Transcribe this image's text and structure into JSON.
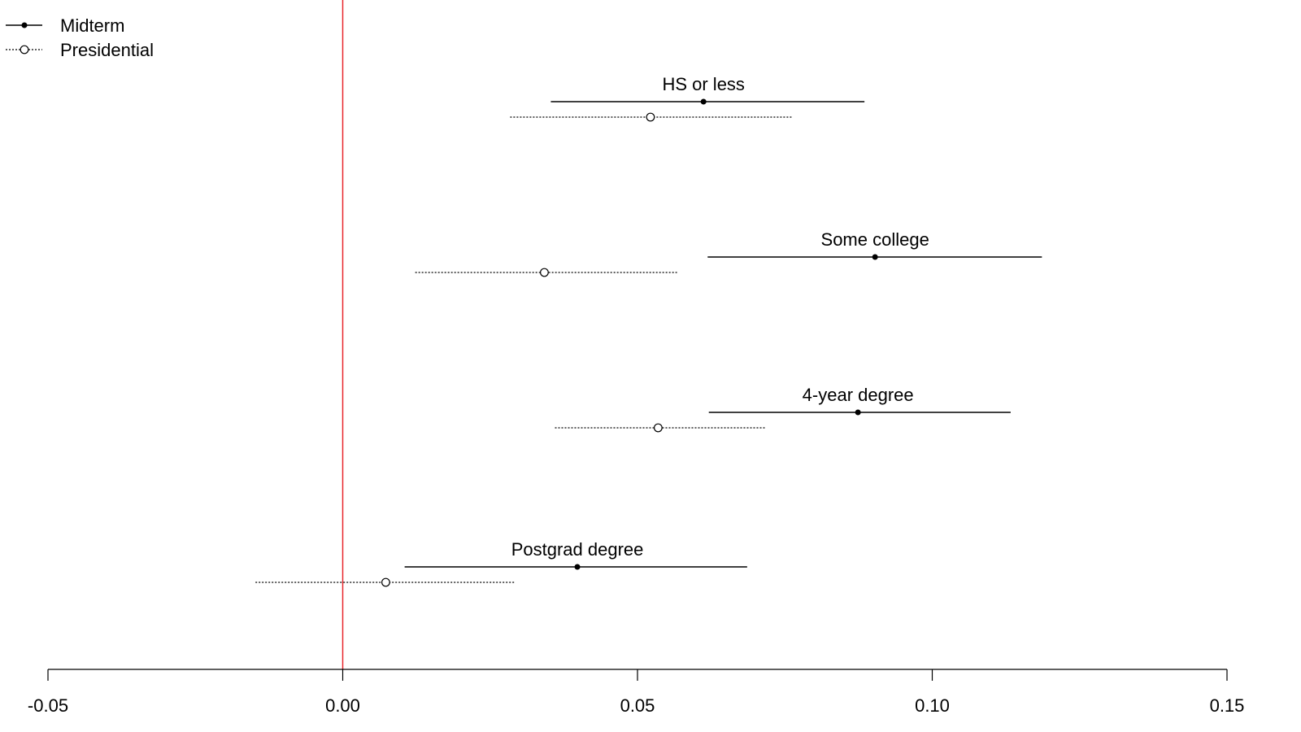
{
  "chart_data": {
    "type": "scatter",
    "subtype": "coefficient-plot",
    "title": "",
    "xlabel": "",
    "ylabel": "",
    "xlim": [
      -0.05,
      0.15
    ],
    "x_ticks": [
      -0.05,
      0.0,
      0.05,
      0.1,
      0.15
    ],
    "x_tick_labels": [
      "-0.05",
      "0.00",
      "0.05",
      "0.10",
      "0.15"
    ],
    "reference_line": {
      "x": 0.0,
      "color": "#e8262b"
    },
    "grid": false,
    "legend_position": "top-left",
    "categories": [
      "HS or less",
      "Some college",
      "4-year degree",
      "Postgrad degree"
    ],
    "series": [
      {
        "name": "Midterm",
        "line_style": "solid",
        "marker": "filled-circle",
        "points": [
          {
            "category": "HS or less",
            "estimate": 0.0612,
            "lower": 0.0353,
            "upper": 0.0885
          },
          {
            "category": "Some college",
            "estimate": 0.0903,
            "lower": 0.0619,
            "upper": 0.1186
          },
          {
            "category": "4-year degree",
            "estimate": 0.0874,
            "lower": 0.0621,
            "upper": 0.1133
          },
          {
            "category": "Postgrad degree",
            "estimate": 0.0398,
            "lower": 0.0105,
            "upper": 0.0686
          }
        ]
      },
      {
        "name": "Presidential",
        "line_style": "dotted",
        "marker": "open-circle",
        "points": [
          {
            "category": "HS or less",
            "estimate": 0.0522,
            "lower": 0.0284,
            "upper": 0.0763
          },
          {
            "category": "Some college",
            "estimate": 0.0342,
            "lower": 0.0123,
            "upper": 0.0567
          },
          {
            "category": "4-year degree",
            "estimate": 0.0535,
            "lower": 0.036,
            "upper": 0.0717
          },
          {
            "category": "Postgrad degree",
            "estimate": 0.0073,
            "lower": -0.0148,
            "upper": 0.0292
          }
        ]
      }
    ]
  }
}
